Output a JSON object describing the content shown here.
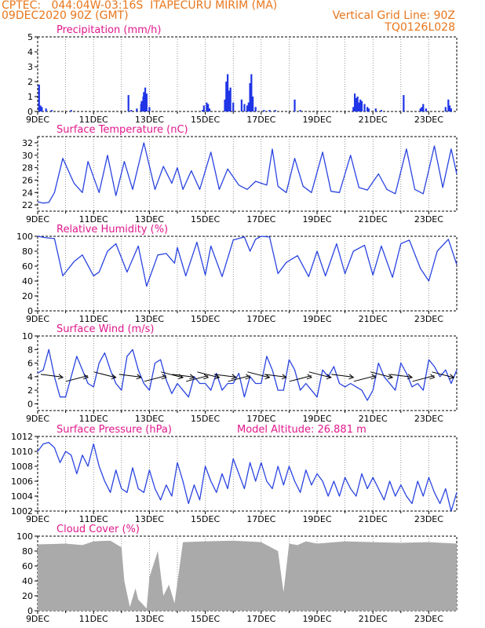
{
  "header": {
    "line1_left": "CPTEC:   044:04W-03:16S  ITAPECURU MIRIM (MA)",
    "line2_left": "09DEC2020 90Z (GMT)",
    "line2_right": "Vertical Grid Line: 90Z",
    "line3_right": "TQ0126L028"
  },
  "colors": {
    "header": "#e8761c",
    "title": "#e0198c",
    "line": "#2a44e0",
    "bars": "#1f35e6",
    "cloud": "#aaaaaa",
    "arrows": "#000000"
  },
  "x_axis": {
    "ticks": [
      "9DEC",
      "11DEC",
      "13DEC",
      "15DEC",
      "17DEC",
      "19DEC",
      "21DEC",
      "23DEC"
    ],
    "start": "2020-12-09",
    "end": "2020-12-24"
  },
  "panels": {
    "precip": {
      "title": "Precipitation (mm/h)",
      "ylim": [
        0,
        5
      ],
      "yticks": [
        "0",
        "1",
        "2",
        "3",
        "4",
        "5"
      ]
    },
    "temp": {
      "title": "Surface Temperature (nC)",
      "ylim": [
        21,
        33
      ],
      "yticks": [
        "22",
        "24",
        "26",
        "28",
        "30",
        "32"
      ]
    },
    "rh": {
      "title": "Relative Humidity (%)",
      "ylim": [
        0,
        100
      ],
      "yticks": [
        "0",
        "20",
        "40",
        "60",
        "80",
        "100"
      ]
    },
    "wind": {
      "title": "Surface Wind (m/s)",
      "ylim": [
        -1,
        10
      ],
      "yticks": [
        "0",
        "2",
        "4",
        "6",
        "8",
        "10"
      ]
    },
    "pressure": {
      "title": "Surface Pressure (hPa)",
      "extra": "Model Altitude: 26.881 m",
      "ylim": [
        1002,
        1012
      ],
      "yticks": [
        "1002",
        "1004",
        "1006",
        "1008",
        "1010",
        "1012"
      ]
    },
    "cloud": {
      "title": "Cloud Cover (%)",
      "ylim": [
        0,
        100
      ],
      "yticks": [
        "0",
        "20",
        "40",
        "60",
        "80",
        "100"
      ]
    }
  },
  "chart_data": [
    {
      "type": "bar",
      "title": "Precipitation (mm/h)",
      "x": [
        9.05,
        9.1,
        9.15,
        9.3,
        9.5,
        10.2,
        12.25,
        12.35,
        12.55,
        12.7,
        12.72,
        12.78,
        12.8,
        12.85,
        12.9,
        13.0,
        14.9,
        14.95,
        15.05,
        15.1,
        15.15,
        15.7,
        15.75,
        15.8,
        15.85,
        15.9,
        16.0,
        16.3,
        16.4,
        16.5,
        16.55,
        16.6,
        16.65,
        16.7,
        16.8,
        17.1,
        17.3,
        17.5,
        18.2,
        18.4,
        20.3,
        20.35,
        20.4,
        20.45,
        20.5,
        20.55,
        20.6,
        20.7,
        20.8,
        20.85,
        21.1,
        21.3,
        22.1,
        22.7,
        22.75,
        22.8,
        22.9,
        23.6,
        23.7,
        23.75,
        23.8
      ],
      "values": [
        1.8,
        0.4,
        0.3,
        0.2,
        0.1,
        0.1,
        1.1,
        0.1,
        0.2,
        0.5,
        0.7,
        1.0,
        1.3,
        1.6,
        1.2,
        0.3,
        0.1,
        0.4,
        0.6,
        0.5,
        0.2,
        0.8,
        2.0,
        2.5,
        1.4,
        1.6,
        0.6,
        0.8,
        0.5,
        0.4,
        0.6,
        1.9,
        2.5,
        1.0,
        0.3,
        0.1,
        0.1,
        0.1,
        0.8,
        0.1,
        0.3,
        1.2,
        0.9,
        1.0,
        0.6,
        0.8,
        0.7,
        0.5,
        0.3,
        0.2,
        0.2,
        0.1,
        1.1,
        0.2,
        0.3,
        0.5,
        0.2,
        0.3,
        0.8,
        0.4,
        0.2
      ],
      "ylim": [
        0,
        5
      ]
    },
    {
      "type": "line",
      "title": "Surface Temperature (nC)",
      "x": [
        9.0,
        9.2,
        9.4,
        9.6,
        9.9,
        10.3,
        10.6,
        10.8,
        11.2,
        11.5,
        11.8,
        12.1,
        12.4,
        12.8,
        13.2,
        13.5,
        13.8,
        14.0,
        14.2,
        14.5,
        14.8,
        15.2,
        15.5,
        15.8,
        16.2,
        16.5,
        16.8,
        17.2,
        17.4,
        17.6,
        17.9,
        18.2,
        18.5,
        18.8,
        19.2,
        19.5,
        19.8,
        20.2,
        20.5,
        20.8,
        21.2,
        21.5,
        21.8,
        22.2,
        22.5,
        22.8,
        23.2,
        23.5,
        23.8,
        24.0
      ],
      "y": [
        22.5,
        22.3,
        22.4,
        24,
        29.5,
        25.5,
        24,
        29,
        24,
        30,
        23.5,
        29,
        24.5,
        32,
        24.5,
        28.2,
        25.5,
        28,
        24.5,
        27.5,
        24.5,
        30.5,
        24.5,
        27.8,
        25.2,
        24.5,
        25.8,
        25.2,
        31,
        25,
        24,
        29.5,
        25,
        24,
        30.5,
        24.2,
        24,
        30,
        24.8,
        24.4,
        27,
        24.5,
        23.8,
        31,
        24.5,
        23.8,
        31.5,
        24.8,
        31,
        27
      ],
      "ylim": [
        21,
        33
      ]
    },
    {
      "type": "line",
      "title": "Relative Humidity (%)",
      "x": [
        9.0,
        9.3,
        9.6,
        9.9,
        10.3,
        10.6,
        11.0,
        11.2,
        11.5,
        11.8,
        12.2,
        12.6,
        12.9,
        13.3,
        13.6,
        13.9,
        14.0,
        14.3,
        14.7,
        15.0,
        15.2,
        15.6,
        16.0,
        16.4,
        16.6,
        16.8,
        17.0,
        17.3,
        17.6,
        17.9,
        18.3,
        18.7,
        19.0,
        19.3,
        19.7,
        20.0,
        20.3,
        20.7,
        21.0,
        21.3,
        21.7,
        22.0,
        22.3,
        22.7,
        23.0,
        23.3,
        23.7,
        24.0
      ],
      "y": [
        100,
        98,
        97,
        47,
        66,
        75,
        47,
        52,
        80,
        90,
        52,
        87,
        33,
        75,
        77,
        64,
        85,
        47,
        92,
        48,
        87,
        46,
        95,
        99,
        80,
        96,
        100,
        99,
        50,
        65,
        74,
        46,
        80,
        47,
        90,
        50,
        80,
        88,
        48,
        87,
        45,
        90,
        95,
        57,
        40,
        80,
        96,
        62
      ],
      "ylim": [
        0,
        100
      ]
    },
    {
      "type": "line",
      "title": "Surface Wind (m/s)",
      "x": [
        9.0,
        9.2,
        9.4,
        9.6,
        9.8,
        10.0,
        10.2,
        10.4,
        10.6,
        10.8,
        11.0,
        11.2,
        11.4,
        11.6,
        11.8,
        12.0,
        12.2,
        12.4,
        12.6,
        12.8,
        13.0,
        13.2,
        13.4,
        13.6,
        13.8,
        14.0,
        14.2,
        14.4,
        14.6,
        14.8,
        15.0,
        15.2,
        15.4,
        15.6,
        15.8,
        16.0,
        16.2,
        16.4,
        16.6,
        16.8,
        17.0,
        17.2,
        17.4,
        17.6,
        17.8,
        18.0,
        18.2,
        18.4,
        18.6,
        18.8,
        19.0,
        19.2,
        19.4,
        19.6,
        19.8,
        20.0,
        20.2,
        20.4,
        20.6,
        20.8,
        21.0,
        21.2,
        21.4,
        21.6,
        21.8,
        22.0,
        22.2,
        22.4,
        22.6,
        22.8,
        23.0,
        23.2,
        23.4,
        23.6,
        23.8,
        24.0
      ],
      "y": [
        4.5,
        5,
        8,
        4,
        1,
        1,
        4,
        7,
        5,
        3,
        2.5,
        6,
        7.5,
        5,
        3,
        2,
        7,
        8,
        5,
        3,
        2,
        6,
        6.5,
        3.5,
        1.5,
        3,
        2,
        1,
        4,
        3,
        3,
        2,
        4.5,
        2,
        3,
        3,
        4.5,
        1,
        4,
        3,
        3,
        7,
        5,
        2,
        2,
        6.5,
        5,
        2,
        3,
        2,
        1,
        5,
        4,
        5.5,
        3,
        2.5,
        3,
        2.5,
        2,
        0.5,
        2,
        6,
        4,
        3,
        2,
        6,
        4.5,
        2.5,
        3,
        2,
        6.5,
        5.5,
        4,
        5,
        3,
        5
      ],
      "ylim": [
        -1,
        10
      ]
    },
    {
      "type": "line",
      "title": "Surface Pressure (hPa)",
      "x": [
        9.0,
        9.2,
        9.4,
        9.6,
        9.8,
        10.0,
        10.2,
        10.4,
        10.6,
        10.8,
        11.0,
        11.2,
        11.4,
        11.6,
        11.8,
        12.0,
        12.2,
        12.4,
        12.6,
        12.8,
        13.0,
        13.2,
        13.4,
        13.6,
        13.8,
        14.0,
        14.2,
        14.4,
        14.6,
        14.8,
        15.0,
        15.2,
        15.4,
        15.6,
        15.8,
        16.0,
        16.2,
        16.4,
        16.6,
        16.8,
        17.0,
        17.2,
        17.4,
        17.6,
        17.8,
        18.0,
        18.2,
        18.4,
        18.6,
        18.8,
        19.0,
        19.2,
        19.4,
        19.6,
        19.8,
        20.0,
        20.2,
        20.4,
        20.6,
        20.8,
        21.0,
        21.2,
        21.4,
        21.6,
        21.8,
        22.0,
        22.2,
        22.4,
        22.6,
        22.8,
        23.0,
        23.2,
        23.4,
        23.6,
        23.8,
        24.0
      ],
      "y": [
        1010,
        1011,
        1011.2,
        1010.5,
        1008.5,
        1010,
        1009.5,
        1007,
        1009.5,
        1008,
        1011,
        1008,
        1006,
        1004.5,
        1007.5,
        1005,
        1004.5,
        1007.8,
        1005,
        1004.5,
        1007.5,
        1005,
        1003.5,
        1005.5,
        1004,
        1008.5,
        1006,
        1003,
        1005.5,
        1003.5,
        1008,
        1006,
        1004.5,
        1007,
        1005,
        1009,
        1007,
        1005,
        1008.5,
        1006,
        1008.5,
        1006,
        1005,
        1008,
        1005.5,
        1008,
        1006,
        1004.5,
        1007.5,
        1005.5,
        1007,
        1006,
        1004,
        1006,
        1004,
        1006.5,
        1005,
        1004,
        1007,
        1005,
        1006.5,
        1005,
        1003.5,
        1006,
        1004,
        1005.5,
        1004,
        1003,
        1006,
        1004,
        1006.5,
        1004.5,
        1003,
        1005,
        1002,
        1004.5
      ],
      "ylim": [
        1002,
        1012
      ]
    },
    {
      "type": "area",
      "title": "Cloud Cover (%)",
      "x": [
        9.0,
        10.0,
        10.6,
        11.0,
        11.6,
        12.0,
        12.1,
        12.3,
        12.5,
        12.6,
        12.9,
        13.0,
        13.3,
        13.5,
        13.7,
        13.9,
        14.2,
        15.0,
        16.0,
        17.0,
        17.6,
        17.8,
        18.0,
        18.3,
        18.6,
        19.0,
        20.0,
        21.0,
        22.0,
        23.0,
        24.0
      ],
      "y": [
        89,
        90,
        88,
        93,
        94,
        85,
        40,
        5,
        30,
        15,
        3,
        45,
        80,
        20,
        35,
        10,
        92,
        93,
        94,
        92,
        80,
        25,
        90,
        88,
        93,
        90,
        93,
        92,
        91,
        92,
        90
      ],
      "ylim": [
        0,
        100
      ]
    }
  ]
}
